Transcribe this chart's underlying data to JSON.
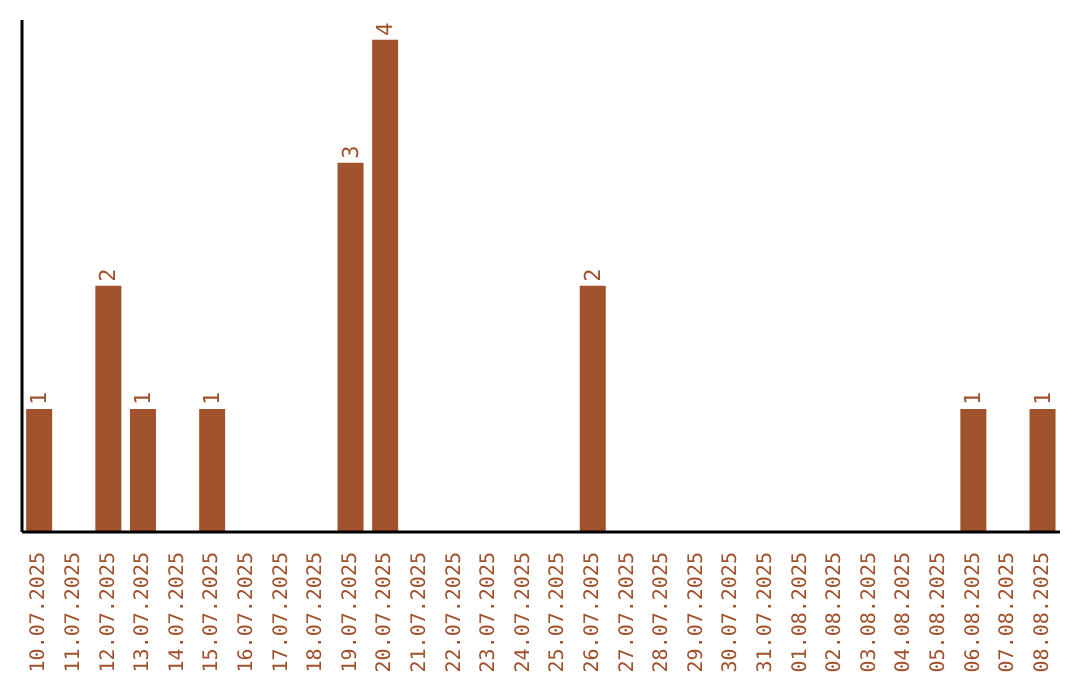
{
  "chart_data": {
    "type": "bar",
    "categories": [
      "10.07.2025",
      "11.07.2025",
      "12.07.2025",
      "13.07.2025",
      "14.07.2025",
      "15.07.2025",
      "16.07.2025",
      "17.07.2025",
      "18.07.2025",
      "19.07.2025",
      "20.07.2025",
      "21.07.2025",
      "22.07.2025",
      "23.07.2025",
      "24.07.2025",
      "25.07.2025",
      "26.07.2025",
      "27.07.2025",
      "28.07.2025",
      "29.07.2025",
      "30.07.2025",
      "31.07.2025",
      "01.08.2025",
      "02.08.2025",
      "03.08.2025",
      "04.08.2025",
      "05.08.2025",
      "06.08.2025",
      "07.08.2025",
      "08.08.2025"
    ],
    "values": [
      1,
      0,
      2,
      1,
      0,
      1,
      0,
      0,
      0,
      3,
      4,
      0,
      0,
      0,
      0,
      0,
      2,
      0,
      0,
      0,
      0,
      0,
      0,
      0,
      0,
      0,
      0,
      1,
      0,
      1
    ],
    "value_labels": [
      "1",
      null,
      "2",
      "1",
      null,
      "1",
      null,
      null,
      null,
      "3",
      "4",
      null,
      null,
      null,
      null,
      null,
      "2",
      null,
      null,
      null,
      null,
      null,
      null,
      null,
      null,
      null,
      null,
      "1",
      null,
      "1"
    ],
    "color": "#a0522d"
  }
}
